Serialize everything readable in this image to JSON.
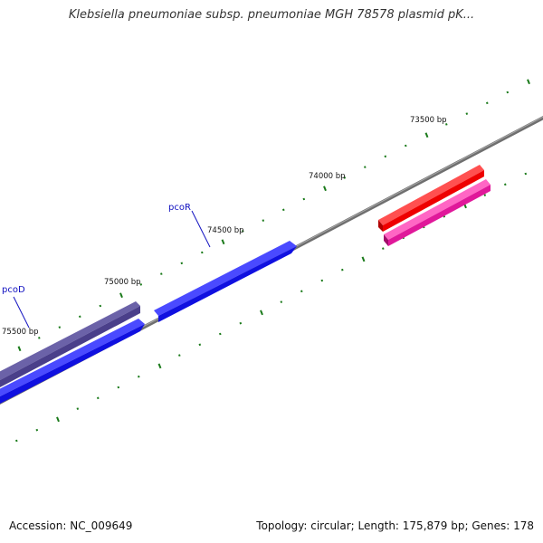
{
  "title": "Klebsiella pneumoniae subsp. pneumoniae MGH 78578 plasmid pK...",
  "footer": {
    "accession": "Accession: NC_009649",
    "summary": "Topology: circular; Length: 175,879 bp; Genes: 178"
  },
  "colors": {
    "backbone": "#7a7a7a",
    "tick": "#1a7a1a",
    "gene_label": "#1010c0"
  },
  "ticks": [
    {
      "label": "73500 bp",
      "position": 73500
    },
    {
      "label": "74000 bp",
      "position": 74000
    },
    {
      "label": "74500 bp",
      "position": 74500
    },
    {
      "label": "75000 bp",
      "position": 75000
    },
    {
      "label": "75500 bp",
      "position": 75500
    }
  ],
  "genes": [
    {
      "name": "pcoR",
      "strand": "forward",
      "color": "#1010e0"
    },
    {
      "name": "pcoD",
      "strand": "forward",
      "color": "#4a3f8a"
    },
    {
      "name": "",
      "strand": "forward",
      "color": "#1010e0"
    },
    {
      "name": "",
      "strand": "reverse",
      "color": "#ee0000"
    },
    {
      "name": "",
      "strand": "reverse",
      "color": "#e0189a"
    }
  ]
}
